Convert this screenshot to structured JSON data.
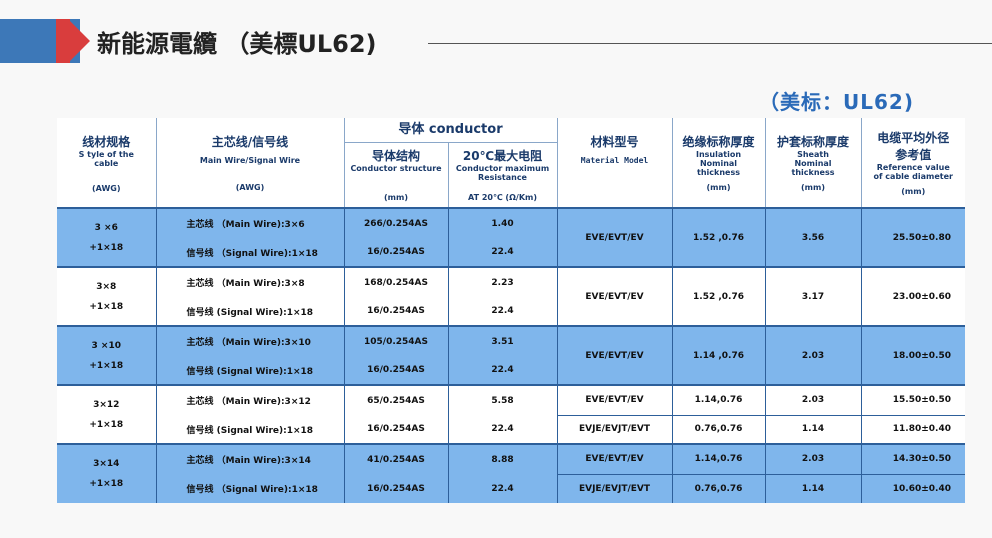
{
  "header": {
    "title": "新能源電纜 （美標UL62)",
    "subtitle": "（美标：UL62)"
  },
  "table": {
    "headers": {
      "style": {
        "cn": "线材规格",
        "en1": "S tyle of the",
        "en2": "cable",
        "unit": "(AWG)"
      },
      "wire": {
        "cn": "主芯线/信号线",
        "en": "Main Wire/Signal Wire",
        "unit": "(AWG)"
      },
      "conductor": {
        "cn": "导体  conductor"
      },
      "structure": {
        "cn": "导体结构",
        "en": "Conductor structure",
        "unit": "(mm)"
      },
      "resistance": {
        "cn": "20℃最大电阻",
        "en1": "Conductor maximum",
        "en2": "Resistance",
        "unit": "AT 20℃ (Ω/Km)"
      },
      "material": {
        "cn": "材料型号",
        "en": "Material Model"
      },
      "insulation": {
        "cn": "绝缘标称厚度",
        "en1": "Insulation",
        "en2": "Nominal",
        "en3": "thickness",
        "unit": "(mm)"
      },
      "sheath": {
        "cn": "护套标称厚度",
        "en1": "Sheath",
        "en2": "Nominal",
        "en3": "thickness",
        "unit": "(mm)"
      },
      "diameter": {
        "cn1": "电缆平均外径",
        "cn2": "参考值",
        "en1": "Reference value",
        "en2": "of cable diameter",
        "unit": "(mm)"
      }
    },
    "groups": [
      {
        "style1": "3 ×6",
        "style2": "+1×18",
        "main": "主芯线 （Main Wire):3×6",
        "signal": "信号线 （Signal Wire):1×18",
        "struct_main": "266/0.254AS",
        "struct_signal": "16/0.254AS",
        "res_main": "1.40",
        "res_signal": "22.4",
        "material": "EVE/EVT/EV",
        "insulation": "1.52 ,0.76",
        "sheath": "3.56",
        "diameter": "25.50±0.80"
      },
      {
        "style1": "3×8",
        "style2": "+1×18",
        "main": "主芯线 （Main Wire):3×8",
        "signal": "信号线 (Signal Wire):1×18",
        "struct_main": "168/0.254AS",
        "struct_signal": "16/0.254AS",
        "res_main": "2.23",
        "res_signal": "22.4",
        "material": "EVE/EVT/EV",
        "insulation": "1.52 ,0.76",
        "sheath": "3.17",
        "diameter": "23.00±0.60"
      },
      {
        "style1": "3 ×10",
        "style2": "+1×18",
        "main": "主芯线 （Main Wire):3×10",
        "signal": "信号线 (Signal Wire):1×18",
        "struct_main": "105/0.254AS",
        "struct_signal": "16/0.254AS",
        "res_main": "3.51",
        "res_signal": "22.4",
        "material": "EVE/EVT/EV",
        "insulation": "1.14 ,0.76",
        "sheath": "2.03",
        "diameter": "18.00±0.50"
      },
      {
        "style1": "3×12",
        "style2": "+1×18",
        "main": "主芯线 （Main Wire):3×12",
        "signal": "信号线 (Signal Wire):1×18",
        "struct_main": "65/0.254AS",
        "struct_signal": "16/0.254AS",
        "res_main": "5.58",
        "res_signal": "22.4",
        "material_a": "EVE/EVT/EV",
        "insulation_a": "1.14,0.76",
        "sheath_a": "2.03",
        "diameter_a": "15.50±0.50",
        "material_b": "EVJE/EVJT/EVT",
        "insulation_b": "0.76,0.76",
        "sheath_b": "1.14",
        "diameter_b": "11.80±0.40"
      },
      {
        "style1": "3×14",
        "style2": "+1×18",
        "main": "主芯线 （Main Wire):3×14",
        "signal": "信号线 （Signal Wire):1×18",
        "struct_main": "41/0.254AS",
        "struct_signal": "16/0.254AS",
        "res_main": "8.88",
        "res_signal": "22.4",
        "material_a": "EVE/EVT/EV",
        "insulation_a": "1.14,0.76",
        "sheath_a": "2.03",
        "diameter_a": "14.30±0.50",
        "material_b": "EVJE/EVJT/EVT",
        "insulation_b": "0.76,0.76",
        "sheath_b": "1.14",
        "diameter_b": "10.60±0.40"
      }
    ]
  },
  "colors": {
    "accent": "#3d78b8",
    "red": "#d93d3d",
    "row_blue": "#7fb6ec",
    "subtitle": "#2a6ab8"
  }
}
